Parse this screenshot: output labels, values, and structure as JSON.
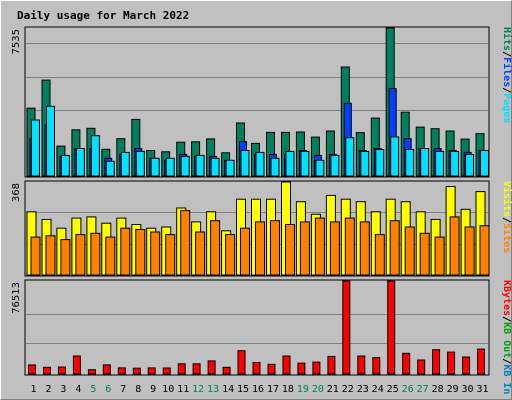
{
  "colors": {
    "hits": "#00805c",
    "files": "#0040ff",
    "pages": "#00e0ff",
    "visits": "#ffff00",
    "sites": "#ff8000",
    "kbin": "#0080c0",
    "kbout": "#00a000",
    "kbf": "#ff0000",
    "title": "#0000ff",
    "weekend": "#00805c",
    "weekday": "#000000",
    "slash": "#000000"
  },
  "chart_data": {
    "type": "bar",
    "title": "Daily usage for March 2022",
    "categories": [
      "1",
      "2",
      "3",
      "4",
      "5",
      "6",
      "7",
      "8",
      "9",
      "10",
      "11",
      "12",
      "13",
      "14",
      "15",
      "16",
      "17",
      "18",
      "19",
      "20",
      "21",
      "22",
      "23",
      "24",
      "25",
      "26",
      "27",
      "28",
      "29",
      "30",
      "31"
    ],
    "weekend_days": [
      "5",
      "6",
      "12",
      "13",
      "19",
      "20",
      "26",
      "27"
    ],
    "panels": [
      {
        "id": "hits-files-pages",
        "ymax_label": "7535",
        "ylim": [
          0,
          7535
        ],
        "right_label": [
          {
            "text": "Hits",
            "color_key": "hits"
          },
          {
            "text": "/",
            "color_key": "slash"
          },
          {
            "text": "Files",
            "color_key": "files"
          },
          {
            "text": "/",
            "color_key": "slash"
          },
          {
            "text": "Pages",
            "color_key": "pages"
          }
        ],
        "series": [
          {
            "name": "Hits",
            "color_key": "hits",
            "values": [
              3450,
              4880,
              1520,
              2350,
              2430,
              1360,
              1900,
              2880,
              1300,
              1230,
              1720,
              1740,
              1890,
              1180,
              2700,
              1660,
              2220,
              2220,
              2240,
              1980,
              2290,
              5550,
              2210,
              2950,
              7535,
              3250,
              2490,
              2410,
              2290,
              1880,
              2160
            ]
          },
          {
            "name": "Files",
            "color_key": "files",
            "values": [
              1900,
              2600,
              1000,
              1400,
              1400,
              900,
              1100,
              1400,
              900,
              800,
              1100,
              1000,
              1000,
              800,
              1750,
              1100,
              1100,
              1100,
              1300,
              1050,
              1100,
              3700,
              1300,
              1400,
              4450,
              1900,
              1400,
              1400,
              1300,
              1200,
              1300
            ]
          },
          {
            "name": "Pages",
            "color_key": "pages",
            "values": [
              2850,
              3550,
              1050,
              1400,
              2050,
              750,
              1200,
              1250,
              900,
              900,
              1000,
              1050,
              900,
              800,
              1300,
              1200,
              900,
              1250,
              1250,
              800,
              1050,
              1950,
              1250,
              1350,
              1990,
              1350,
              1400,
              1250,
              1250,
              1100,
              1300
            ]
          }
        ]
      },
      {
        "id": "visits-sites",
        "ymax_label": "368",
        "ylim": [
          0,
          368
        ],
        "right_label": [
          {
            "text": "Visits",
            "color_key": "visits"
          },
          {
            "text": "/",
            "color_key": "slash"
          },
          {
            "text": "Sites",
            "color_key": "sites"
          }
        ],
        "series": [
          {
            "name": "Visits",
            "color_key": "visits",
            "values": [
              250,
              220,
              185,
              225,
              230,
              205,
              225,
              200,
              185,
              190,
              265,
              210,
              250,
              175,
              300,
              300,
              300,
              368,
              290,
              240,
              315,
              300,
              290,
              250,
              300,
              290,
              250,
              220,
              350,
              260,
              330
            ]
          },
          {
            "name": "Sites",
            "color_key": "sites",
            "values": [
              150,
              155,
              140,
              160,
              165,
              150,
              185,
              180,
              170,
              160,
              255,
              170,
              215,
              160,
              185,
              210,
              215,
              200,
              210,
              225,
              210,
              225,
              210,
              160,
              215,
              190,
              165,
              150,
              230,
              190,
              195
            ]
          }
        ]
      },
      {
        "id": "kbytes",
        "ymax_label": "76513",
        "ylim": [
          0,
          76513
        ],
        "right_label": [
          {
            "text": "KBytes",
            "color_key": "kbf"
          },
          {
            "text": "/",
            "color_key": "slash"
          },
          {
            "text": "KB Out",
            "color_key": "kbout"
          },
          {
            "text": "/",
            "color_key": "slash"
          },
          {
            "text": "KB In",
            "color_key": "kbin"
          }
        ],
        "series": [
          {
            "name": "KBytes",
            "color_key": "kbf",
            "values": [
              7500,
              5500,
              5800,
              14800,
              3500,
              7500,
              5000,
              4800,
              5000,
              4900,
              8400,
              8400,
              10800,
              5500,
              19200,
              9500,
              8000,
              14800,
              9000,
              9800,
              14500,
              76513,
              14800,
              13500,
              76513,
              17000,
              11500,
              20000,
              18000,
              14000,
              20500
            ]
          }
        ]
      }
    ]
  }
}
